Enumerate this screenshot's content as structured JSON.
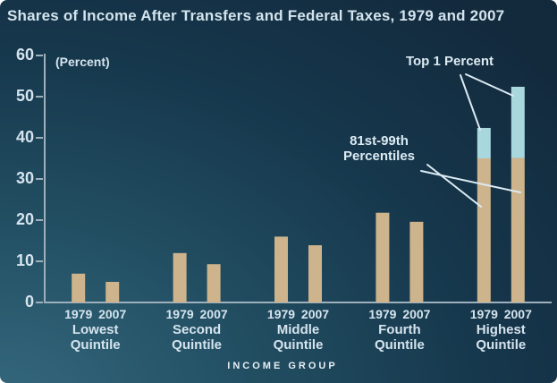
{
  "colors": {
    "background_top": "#12283a",
    "background_bottom_left": "#35687d",
    "bar_tan": "#cdb48c",
    "bar_blue": "#a8d8de",
    "axis": "#9eb0bc",
    "text": "#d5e4ee",
    "leader_line": "#dcebf3"
  },
  "chart_data": {
    "type": "bar",
    "title": "Shares of Income After Transfers and Federal Taxes, 1979 and 2007",
    "unit_label": "(Percent)",
    "xlabel": "INCOME GROUP",
    "ylim": [
      0,
      60
    ],
    "yticks": [
      0,
      10,
      20,
      30,
      40,
      50,
      60
    ],
    "grid": false,
    "legend_position": "none",
    "years": [
      "1979",
      "2007"
    ],
    "groups": [
      {
        "id": "lowest",
        "label": "Lowest\nQuintile",
        "bars": [
          {
            "year": "1979",
            "segments": [
              {
                "id": "all",
                "name": "All",
                "value": 7.0,
                "color": "bar_tan"
              }
            ]
          },
          {
            "year": "2007",
            "segments": [
              {
                "id": "all",
                "name": "All",
                "value": 5.0,
                "color": "bar_tan"
              }
            ]
          }
        ]
      },
      {
        "id": "second",
        "label": "Second\nQuintile",
        "bars": [
          {
            "year": "1979",
            "segments": [
              {
                "id": "all",
                "name": "All",
                "value": 12.0,
                "color": "bar_tan"
              }
            ]
          },
          {
            "year": "2007",
            "segments": [
              {
                "id": "all",
                "name": "All",
                "value": 9.3,
                "color": "bar_tan"
              }
            ]
          }
        ]
      },
      {
        "id": "middle",
        "label": "Middle\nQuintile",
        "bars": [
          {
            "year": "1979",
            "segments": [
              {
                "id": "all",
                "name": "All",
                "value": 16.0,
                "color": "bar_tan"
              }
            ]
          },
          {
            "year": "2007",
            "segments": [
              {
                "id": "all",
                "name": "All",
                "value": 13.9,
                "color": "bar_tan"
              }
            ]
          }
        ]
      },
      {
        "id": "fourth",
        "label": "Fourth\nQuintile",
        "bars": [
          {
            "year": "1979",
            "segments": [
              {
                "id": "all",
                "name": "All",
                "value": 21.8,
                "color": "bar_tan"
              }
            ]
          },
          {
            "year": "2007",
            "segments": [
              {
                "id": "all",
                "name": "All",
                "value": 19.6,
                "color": "bar_tan"
              }
            ]
          }
        ]
      },
      {
        "id": "highest",
        "label": "Highest\nQuintile",
        "bars": [
          {
            "year": "1979",
            "segments": [
              {
                "id": "p81-99",
                "name": "81st-99th Percentiles",
                "value": 35.0,
                "color": "bar_tan"
              },
              {
                "id": "top1",
                "name": "Top 1 Percent",
                "value": 7.4,
                "color": "bar_blue"
              }
            ]
          },
          {
            "year": "2007",
            "segments": [
              {
                "id": "p81-99",
                "name": "81st-99th Percentiles",
                "value": 35.1,
                "color": "bar_tan"
              },
              {
                "id": "top1",
                "name": "Top 1 Percent",
                "value": 17.3,
                "color": "bar_blue"
              }
            ]
          }
        ]
      }
    ],
    "annotations": [
      {
        "id": "top1",
        "text": "Top 1 Percent",
        "lines": [
          [
            515,
            84,
            537,
            145
          ],
          [
            521,
            83,
            574,
            107
          ]
        ]
      },
      {
        "id": "p8199",
        "text": "81st-99th\nPercentiles",
        "lines": [
          [
            478,
            184,
            538,
            231
          ],
          [
            471,
            191,
            582,
            215
          ]
        ]
      }
    ]
  }
}
